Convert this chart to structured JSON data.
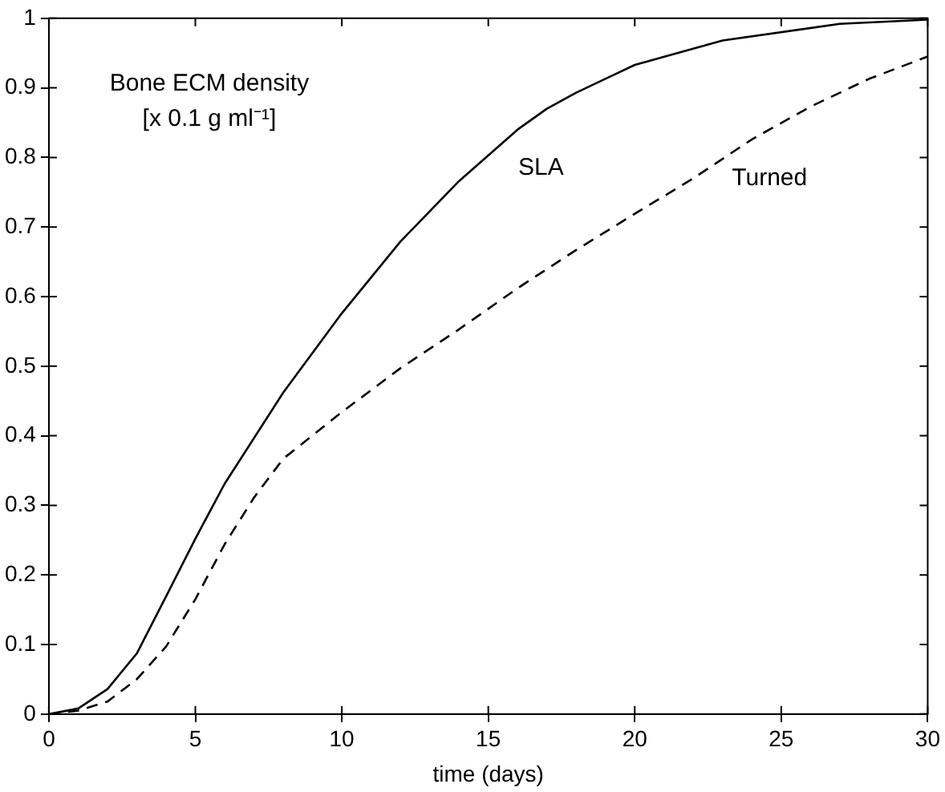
{
  "chart_data": {
    "type": "line",
    "xlabel": "time (days)",
    "x": [
      0,
      1,
      2,
      3,
      4,
      5,
      6,
      8,
      10,
      12,
      14,
      16,
      17,
      18,
      20,
      23,
      27,
      30
    ],
    "series": [
      {
        "name": "SLA",
        "color": "#000000",
        "line_style": "solid",
        "values": [
          0,
          0.008,
          0.036,
          0.087,
          0.169,
          0.252,
          0.331,
          0.462,
          0.576,
          0.679,
          0.766,
          0.84,
          0.87,
          0.893,
          0.933,
          0.968,
          0.992,
          0.998
        ]
      },
      {
        "name": "Turned",
        "color": "#000000",
        "line_style": "dashed",
        "x": [
          0,
          1,
          2,
          3,
          4,
          5,
          6,
          7,
          8,
          10,
          12,
          14,
          16,
          18,
          20,
          22,
          24,
          26,
          28,
          30
        ],
        "values": [
          0,
          0.005,
          0.018,
          0.05,
          0.097,
          0.165,
          0.244,
          0.311,
          0.367,
          0.434,
          0.497,
          0.553,
          0.612,
          0.667,
          0.719,
          0.77,
          0.826,
          0.873,
          0.913,
          0.945
        ]
      }
    ],
    "xlim": [
      0,
      30
    ],
    "xticks": [
      0,
      5,
      10,
      15,
      20,
      25,
      30
    ],
    "ylim": [
      0,
      1
    ],
    "yticks": [
      0,
      0.1,
      0.2,
      0.3,
      0.4,
      0.5,
      0.6,
      0.7,
      0.8,
      0.9,
      1
    ],
    "annotations": [
      "Bone ECM density",
      "[x 0.1 g ml⁻¹]"
    ],
    "grid": false,
    "legend": false,
    "marker": "none"
  }
}
